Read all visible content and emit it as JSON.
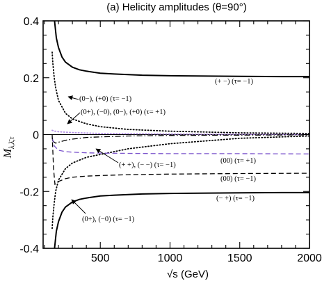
{
  "chart_data": {
    "type": "line",
    "title": "(a) Helicity amplitudes  (θ=90°)",
    "xlabel": "√s (GeV)",
    "ylabel": {
      "main": "M",
      "subscript": "λ,λ̄,τ"
    },
    "xlim": [
      90,
      2000
    ],
    "ylim": [
      -0.4,
      0.4
    ],
    "xticks": [
      500,
      1000,
      1500,
      2000
    ],
    "xtick_labels": [
      "500",
      "1000",
      "1500",
      "2000"
    ],
    "yticks": [
      -0.4,
      -0.2,
      0,
      0.2,
      0.4
    ],
    "ytick_labels": [
      "-0.4",
      "-0.2",
      "0",
      "0.2",
      "0.4"
    ],
    "grid": false,
    "colors": {
      "black": "#000000",
      "purple": "#7a52cc",
      "light_purple": "#b38fe6"
    },
    "series": [
      {
        "label": "(+ −)   (τ= −1)",
        "style": "solid",
        "color": "#000000",
        "x": [
          170,
          185,
          200,
          225,
          250,
          300,
          350,
          400,
          500,
          600,
          800,
          1000,
          1200,
          1500,
          1800,
          2000
        ],
        "y": [
          0.41,
          0.34,
          0.306,
          0.273,
          0.255,
          0.237,
          0.228,
          0.223,
          0.216,
          0.213,
          0.209,
          0.207,
          0.206,
          0.205,
          0.204,
          0.204
        ]
      },
      {
        "label": "(− +)   (τ= −1)",
        "style": "solid",
        "color": "#000000",
        "x": [
          170,
          185,
          200,
          225,
          250,
          300,
          350,
          400,
          500,
          600,
          800,
          1000,
          1200,
          1500,
          1800,
          2000
        ],
        "y": [
          -0.41,
          -0.34,
          -0.306,
          -0.273,
          -0.255,
          -0.237,
          -0.228,
          -0.223,
          -0.216,
          -0.213,
          -0.209,
          -0.207,
          -0.206,
          -0.205,
          -0.204,
          -0.204
        ]
      },
      {
        "label": "(0−), (+0)  (τ= −1)",
        "style": "dotted",
        "color": "#000000",
        "x": [
          155,
          160,
          170,
          180,
          200,
          250,
          300,
          400,
          500,
          700,
          1000,
          1500,
          2000
        ],
        "y": [
          0.29,
          0.25,
          0.2,
          0.165,
          0.12,
          0.075,
          0.055,
          0.038,
          0.028,
          0.018,
          0.012,
          0.006,
          0.004
        ]
      },
      {
        "label": "(0+), (−0)  (τ= −1)",
        "style": "dotted",
        "color": "#000000",
        "x": [
          155,
          160,
          170,
          180,
          200,
          250,
          300,
          400,
          500,
          700,
          1000,
          1500,
          2000
        ],
        "y": [
          -0.33,
          -0.29,
          -0.24,
          -0.2,
          -0.16,
          -0.12,
          -0.1,
          -0.08,
          -0.07,
          -0.05,
          -0.032,
          -0.013,
          -0.005
        ]
      },
      {
        "label": "(0+), (−0), (0−), (+0) (τ= +1)",
        "style": "dotted",
        "color": "#b38fe6",
        "x": [
          155,
          175,
          200,
          300,
          500,
          1000,
          1500,
          2000
        ],
        "y": [
          0.015,
          0.012,
          0.01,
          0.007,
          0.004,
          0.002,
          0.001,
          0.0
        ]
      },
      {
        "label": "(+ +), (− −) (τ= −1)",
        "style": "dashdot",
        "color": "#000000",
        "x": [
          155,
          165,
          180,
          200,
          250,
          300,
          400,
          500,
          700,
          1000,
          1500,
          2000
        ],
        "y": [
          -0.02,
          -0.025,
          -0.03,
          -0.027,
          -0.02,
          -0.016,
          -0.01,
          -0.008,
          -0.005,
          -0.003,
          -0.002,
          -0.001
        ]
      },
      {
        "label": "(00)   (τ= +1)",
        "style": "dashed",
        "color": "#7a52cc",
        "x": [
          155,
          170,
          200,
          250,
          300,
          400,
          500,
          700,
          1000,
          1500,
          2000
        ],
        "y": [
          -0.01,
          -0.04,
          -0.055,
          -0.06,
          -0.062,
          -0.064,
          -0.065,
          -0.066,
          -0.067,
          -0.067,
          -0.068
        ]
      },
      {
        "label": "(00)   (τ= −1)",
        "style": "dashed",
        "color": "#000000",
        "x": [
          155,
          165,
          175,
          185,
          200,
          250,
          300,
          400,
          500,
          700,
          1000,
          1500,
          2000
        ],
        "y": [
          0.0,
          -0.12,
          -0.175,
          -0.172,
          -0.165,
          -0.155,
          -0.15,
          -0.146,
          -0.144,
          -0.141,
          -0.139,
          -0.137,
          -0.136
        ]
      }
    ],
    "annotations": [
      {
        "text": "(+ −)   (τ= −1)"
      },
      {
        "text": "(0−), (+0)  (τ= −1)"
      },
      {
        "text": "(0+), (−0), (0−), (+0) (τ= +1)"
      },
      {
        "text": "(+ +), (− −) (τ= −1)"
      },
      {
        "text": "(00)   (τ= +1)"
      },
      {
        "text": "(00)   (τ= −1)"
      },
      {
        "text": "(− +)   (τ= −1)"
      },
      {
        "text": "(0+), (−0)  (τ= −1)"
      }
    ]
  }
}
